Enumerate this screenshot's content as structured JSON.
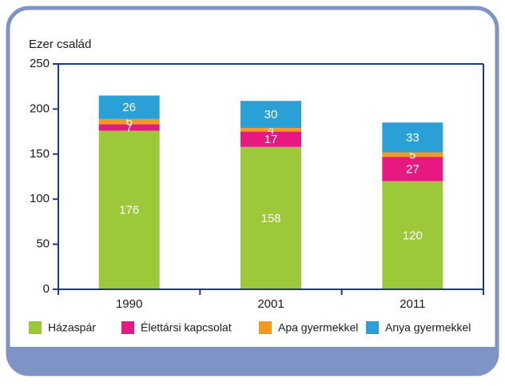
{
  "chart_data": {
    "type": "stacked_bar",
    "y_label": "Ezer család",
    "categories": [
      "1990",
      "2001",
      "2011"
    ],
    "series": [
      {
        "name": "Házaspár",
        "color": "#9dc83a",
        "values": [
          176,
          158,
          120
        ]
      },
      {
        "name": "Élettársi kapcsolat",
        "color": "#e5197f",
        "values": [
          7,
          17,
          27
        ]
      },
      {
        "name": "Apa gyermekkel",
        "color": "#f39a1e",
        "values": [
          6,
          4,
          5
        ]
      },
      {
        "name": "Anya gyermekkel",
        "color": "#2aa0d6",
        "values": [
          26,
          30,
          33
        ]
      }
    ],
    "ylim": [
      0,
      250
    ],
    "yticks": [
      0,
      50,
      100,
      150,
      200,
      250
    ],
    "legend": "bottom"
  }
}
